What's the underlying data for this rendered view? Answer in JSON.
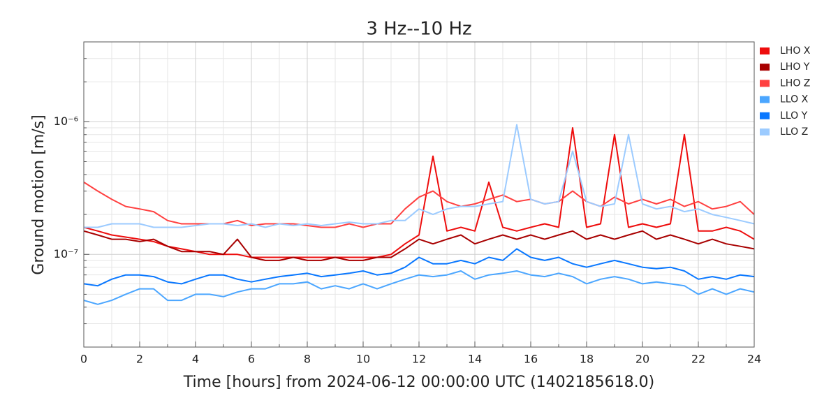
{
  "chart_data": {
    "type": "line",
    "title": "3 Hz--10 Hz",
    "xlabel": "Time [hours] from 2024-06-12 00:00:00 UTC (1402185618.0)",
    "ylabel": "Ground motion [m/s]",
    "log_y": true,
    "grid": true,
    "legend": "outside right",
    "xlim": [
      0,
      24
    ],
    "xticks": [
      0,
      2,
      4,
      6,
      8,
      10,
      12,
      14,
      16,
      18,
      20,
      22,
      24
    ],
    "xminorticks": [
      1,
      3,
      5,
      7,
      9,
      11,
      13,
      15,
      17,
      19,
      21,
      23
    ],
    "ylim": [
      2e-08,
      4e-06
    ],
    "yticks": [
      {
        "value": 1e-07,
        "label": "10⁻⁷"
      },
      {
        "value": 1e-06,
        "label": "10⁻⁶"
      }
    ],
    "yminorticks": [
      3e-08,
      4e-08,
      5e-08,
      6e-08,
      7e-08,
      8e-08,
      9e-08,
      2e-07,
      3e-07,
      4e-07,
      5e-07,
      6e-07,
      7e-07,
      8e-07,
      9e-07,
      2e-06,
      3e-06
    ],
    "x": [
      0,
      0.5,
      1,
      1.5,
      2,
      2.5,
      3,
      3.5,
      4,
      4.5,
      5,
      5.5,
      6,
      6.5,
      7,
      7.5,
      8,
      8.5,
      9,
      9.5,
      10,
      10.5,
      11,
      11.5,
      12,
      12.5,
      13,
      13.5,
      14,
      14.5,
      15,
      15.5,
      16,
      16.5,
      17,
      17.5,
      18,
      18.5,
      19,
      19.5,
      20,
      20.5,
      21,
      21.5,
      22,
      22.5,
      23,
      23.5,
      24
    ],
    "series": [
      {
        "name": "LHO X",
        "color": "#ee0d0d",
        "values": [
          1.6e-07,
          1.5e-07,
          1.4e-07,
          1.35e-07,
          1.3e-07,
          1.25e-07,
          1.15e-07,
          1.1e-07,
          1.05e-07,
          1e-07,
          1e-07,
          1e-07,
          9.5e-08,
          9.5e-08,
          9.5e-08,
          9.5e-08,
          9.5e-08,
          9.5e-08,
          9.5e-08,
          9.5e-08,
          9.5e-08,
          9.5e-08,
          1e-07,
          1.2e-07,
          1.4e-07,
          5.5e-07,
          1.5e-07,
          1.6e-07,
          1.5e-07,
          3.5e-07,
          1.6e-07,
          1.5e-07,
          1.6e-07,
          1.7e-07,
          1.6e-07,
          9e-07,
          1.6e-07,
          1.7e-07,
          8e-07,
          1.6e-07,
          1.7e-07,
          1.6e-07,
          1.7e-07,
          8e-07,
          1.5e-07,
          1.5e-07,
          1.6e-07,
          1.5e-07,
          1.3e-07
        ]
      },
      {
        "name": "LHO Y",
        "color": "#a80000",
        "values": [
          1.5e-07,
          1.4e-07,
          1.3e-07,
          1.3e-07,
          1.25e-07,
          1.3e-07,
          1.15e-07,
          1.05e-07,
          1.05e-07,
          1.05e-07,
          1e-07,
          1.3e-07,
          9.5e-08,
          9e-08,
          9e-08,
          9.5e-08,
          9e-08,
          9e-08,
          9.5e-08,
          9e-08,
          9e-08,
          9.5e-08,
          9.5e-08,
          1.1e-07,
          1.3e-07,
          1.2e-07,
          1.3e-07,
          1.4e-07,
          1.2e-07,
          1.3e-07,
          1.4e-07,
          1.3e-07,
          1.4e-07,
          1.3e-07,
          1.4e-07,
          1.5e-07,
          1.3e-07,
          1.4e-07,
          1.3e-07,
          1.4e-07,
          1.5e-07,
          1.3e-07,
          1.4e-07,
          1.3e-07,
          1.2e-07,
          1.3e-07,
          1.2e-07,
          1.15e-07,
          1.1e-07
        ]
      },
      {
        "name": "LHO Z",
        "color": "#ff4040",
        "values": [
          3.5e-07,
          3e-07,
          2.6e-07,
          2.3e-07,
          2.2e-07,
          2.1e-07,
          1.8e-07,
          1.7e-07,
          1.7e-07,
          1.7e-07,
          1.7e-07,
          1.8e-07,
          1.65e-07,
          1.7e-07,
          1.7e-07,
          1.7e-07,
          1.65e-07,
          1.6e-07,
          1.6e-07,
          1.7e-07,
          1.6e-07,
          1.7e-07,
          1.7e-07,
          2.2e-07,
          2.7e-07,
          3e-07,
          2.5e-07,
          2.3e-07,
          2.4e-07,
          2.6e-07,
          2.8e-07,
          2.5e-07,
          2.6e-07,
          2.4e-07,
          2.5e-07,
          3e-07,
          2.5e-07,
          2.3e-07,
          2.7e-07,
          2.4e-07,
          2.6e-07,
          2.4e-07,
          2.6e-07,
          2.3e-07,
          2.5e-07,
          2.2e-07,
          2.3e-07,
          2.5e-07,
          2e-07
        ]
      },
      {
        "name": "LLO X",
        "color": "#4ba6ff",
        "values": [
          4.5e-08,
          4.2e-08,
          4.5e-08,
          5e-08,
          5.5e-08,
          5.5e-08,
          4.5e-08,
          4.5e-08,
          5e-08,
          5e-08,
          4.8e-08,
          5.2e-08,
          5.5e-08,
          5.5e-08,
          6e-08,
          6e-08,
          6.2e-08,
          5.5e-08,
          5.8e-08,
          5.5e-08,
          6e-08,
          5.5e-08,
          6e-08,
          6.5e-08,
          7e-08,
          6.8e-08,
          7e-08,
          7.5e-08,
          6.5e-08,
          7e-08,
          7.2e-08,
          7.5e-08,
          7e-08,
          6.8e-08,
          7.2e-08,
          6.8e-08,
          6e-08,
          6.5e-08,
          6.8e-08,
          6.5e-08,
          6e-08,
          6.2e-08,
          6e-08,
          5.8e-08,
          5e-08,
          5.5e-08,
          5e-08,
          5.5e-08,
          5.2e-08
        ]
      },
      {
        "name": "LLO Y",
        "color": "#0a78ff",
        "values": [
          6e-08,
          5.8e-08,
          6.5e-08,
          7e-08,
          7e-08,
          6.8e-08,
          6.2e-08,
          6e-08,
          6.5e-08,
          7e-08,
          7e-08,
          6.5e-08,
          6.2e-08,
          6.5e-08,
          6.8e-08,
          7e-08,
          7.2e-08,
          6.8e-08,
          7e-08,
          7.2e-08,
          7.5e-08,
          7e-08,
          7.2e-08,
          8e-08,
          9.5e-08,
          8.5e-08,
          8.5e-08,
          9e-08,
          8.5e-08,
          9.5e-08,
          9e-08,
          1.1e-07,
          9.5e-08,
          9e-08,
          9.5e-08,
          8.5e-08,
          8e-08,
          8.5e-08,
          9e-08,
          8.5e-08,
          8e-08,
          7.8e-08,
          8e-08,
          7.5e-08,
          6.5e-08,
          6.8e-08,
          6.5e-08,
          7e-08,
          6.8e-08
        ]
      },
      {
        "name": "LLO Z",
        "color": "#9ccbff",
        "values": [
          1.6e-07,
          1.6e-07,
          1.7e-07,
          1.7e-07,
          1.7e-07,
          1.6e-07,
          1.6e-07,
          1.6e-07,
          1.65e-07,
          1.7e-07,
          1.7e-07,
          1.65e-07,
          1.7e-07,
          1.6e-07,
          1.7e-07,
          1.65e-07,
          1.7e-07,
          1.65e-07,
          1.7e-07,
          1.75e-07,
          1.7e-07,
          1.7e-07,
          1.8e-07,
          1.8e-07,
          2.2e-07,
          2e-07,
          2.2e-07,
          2.3e-07,
          2.3e-07,
          2.4e-07,
          2.5e-07,
          9.5e-07,
          2.6e-07,
          2.4e-07,
          2.5e-07,
          6e-07,
          2.5e-07,
          2.3e-07,
          2.4e-07,
          8e-07,
          2.4e-07,
          2.2e-07,
          2.3e-07,
          2.1e-07,
          2.2e-07,
          2e-07,
          1.9e-07,
          1.8e-07,
          1.7e-07
        ]
      }
    ]
  }
}
